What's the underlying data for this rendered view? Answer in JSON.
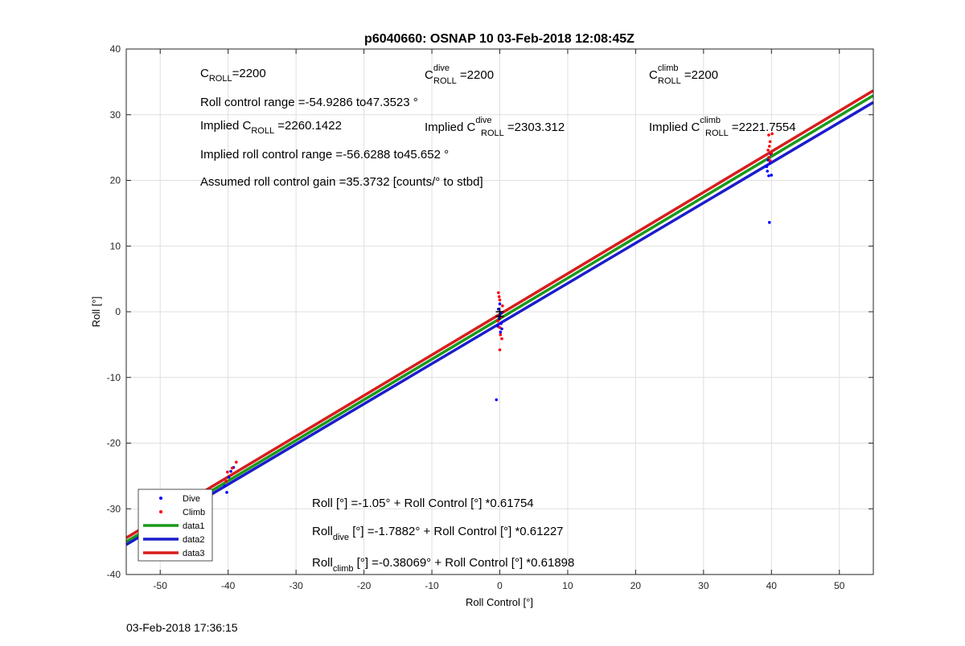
{
  "chart_data": {
    "type": "scatter",
    "title": "p6040660: OSNAP 10 03-Feb-2018 12:08:45Z",
    "xlabel": "Roll Control [°]",
    "ylabel": "Roll [°]",
    "xlim": [
      -55,
      55
    ],
    "ylim": [
      -40,
      40
    ],
    "xticks": [
      -50,
      -40,
      -30,
      -20,
      -10,
      0,
      10,
      20,
      30,
      40,
      50
    ],
    "yticks": [
      -40,
      -30,
      -20,
      -10,
      0,
      10,
      20,
      30,
      40
    ],
    "grid": true,
    "legend_position": "bottom-left",
    "legend": [
      "Dive",
      "Climb",
      "data1",
      "data2",
      "data3"
    ],
    "colors": {
      "dive": "#0000ff",
      "climb": "#ff0000",
      "data1": "#1a9a1a",
      "data2": "#1c1ccc",
      "data3": "#d81d1d"
    },
    "series": [
      {
        "name": "Dive",
        "kind": "points",
        "color": "#0000ff",
        "points": [
          [
            -49.9,
            -28.6
          ],
          [
            -40.5,
            -26.5
          ],
          [
            -40.2,
            -27.5
          ],
          [
            -39.9,
            -25.2
          ],
          [
            -39.6,
            -24.3
          ],
          [
            -39.2,
            -23.7
          ],
          [
            -0.5,
            -13.4
          ],
          [
            -0.3,
            -2.2
          ],
          [
            -0.1,
            -1.0
          ],
          [
            0.0,
            -0.5
          ],
          [
            0.1,
            -3.1
          ],
          [
            0.2,
            -1.8
          ],
          [
            0.3,
            -2.6
          ],
          [
            -0.2,
            0.4
          ],
          [
            0.0,
            1.2
          ],
          [
            0.2,
            -0.2
          ],
          [
            39.4,
            21.4
          ],
          [
            39.6,
            20.7
          ],
          [
            39.8,
            22.7
          ],
          [
            39.5,
            23.1
          ],
          [
            40.0,
            20.8
          ],
          [
            39.7,
            13.6
          ],
          [
            39.9,
            24.0
          ],
          [
            39.3,
            22.1
          ]
        ]
      },
      {
        "name": "Climb",
        "kind": "points",
        "color": "#ff0000",
        "points": [
          [
            -50.2,
            -30.5
          ],
          [
            -40.1,
            -24.4
          ],
          [
            -39.4,
            -23.8
          ],
          [
            -38.8,
            -22.9
          ],
          [
            -40.3,
            -25.8
          ],
          [
            -0.2,
            2.9
          ],
          [
            -0.1,
            2.3
          ],
          [
            0.0,
            1.8
          ],
          [
            0.2,
            -0.8
          ],
          [
            0.3,
            -4.1
          ],
          [
            0.0,
            -5.8
          ],
          [
            -0.3,
            -1.4
          ],
          [
            0.1,
            -3.5
          ],
          [
            0.4,
            0.9
          ],
          [
            0.0,
            -2.4
          ],
          [
            39.6,
            26.9
          ],
          [
            39.8,
            25.9
          ],
          [
            39.7,
            25.2
          ],
          [
            39.5,
            24.6
          ],
          [
            40.0,
            24.1
          ],
          [
            39.6,
            23.5
          ],
          [
            39.8,
            23.0
          ],
          [
            40.1,
            27.1
          ]
        ]
      },
      {
        "name": "data1",
        "kind": "fit",
        "color": "#1a9a1a",
        "intercept": -1.05,
        "slope": 0.61754
      },
      {
        "name": "data2",
        "kind": "fit",
        "color": "#1c1ccc",
        "intercept": -1.7882,
        "slope": 0.61227
      },
      {
        "name": "data3",
        "kind": "fit",
        "color": "#d81d1d",
        "intercept": -0.38069,
        "slope": 0.61898
      }
    ],
    "crosshair_points": [
      [
        0,
        0
      ],
      [
        0,
        -0.7
      ]
    ]
  },
  "annotations": {
    "c_roll_base": "C",
    "c_roll_sub": "ROLL",
    "c_roll_val": "=2200",
    "c_dive_base": "C",
    "c_dive_sup": "dive",
    "c_dive_sub": "ROLL",
    "c_dive_val": " =2200",
    "c_climb_base": "C",
    "c_climb_sup": "climb",
    "c_climb_sub": "ROLL",
    "c_climb_val": " =2200",
    "roll_range": "Roll control range =-54.9286 to47.3523 °",
    "implied_c_pre": "Implied C",
    "implied_c_sub": "ROLL",
    "implied_c_val": " =2260.1422",
    "implied_dive_pre": "Implied C",
    "implied_dive_sup": "dive",
    "implied_dive_sub": "ROLL",
    "implied_dive_val": " =2303.312",
    "implied_climb_pre": "Implied C",
    "implied_climb_sup": "climb",
    "implied_climb_sub": "ROLL",
    "implied_climb_val": " =2221.7554",
    "implied_range": "Implied roll control range =-56.6288 to45.652 °",
    "gain": "Assumed roll control gain =35.3732 [counts/° to stbd]",
    "eq1": "Roll [°] =-1.05° + Roll Control [°] *0.61754",
    "eq2_pre": "Roll",
    "eq2_sub": "dive",
    "eq2_post": " [°] =-1.7882° + Roll Control [°] *0.61227",
    "eq3_pre": "Roll",
    "eq3_sub": "climb",
    "eq3_post": " [°] =-0.38069° + Roll Control [°] *0.61898"
  },
  "footer": {
    "timestamp": "03-Feb-2018 17:36:15"
  }
}
